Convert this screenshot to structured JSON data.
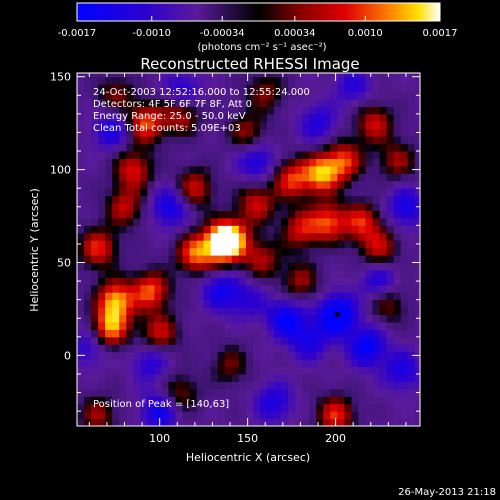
{
  "chart_data": {
    "type": "heatmap",
    "title": "Reconstructed RHESSI Image",
    "xlabel": "Heliocentric X (arcsec)",
    "ylabel": "Heliocentric Y (arcsec)",
    "xlim": [
      53,
      248
    ],
    "ylim": [
      -38,
      152
    ],
    "x_ticks": [
      100,
      150,
      200
    ],
    "y_ticks": [
      0,
      50,
      100,
      150
    ],
    "colorbar": {
      "range": [
        -0.0017,
        0.0017
      ],
      "tick_values": [
        -0.0017,
        -0.001,
        -0.00034,
        0.00034,
        0.001,
        0.0017
      ],
      "tick_labels": [
        "-0.0017",
        "-0.0010",
        "-0.00034",
        "0.00034",
        "0.0010",
        "0.0017"
      ],
      "label": "(photons cm⁻² s⁻¹ asec⁻²)"
    },
    "annotations": [
      "24-Oct-2003 12:52:16.000 to 12:55:24.000",
      "Detectors: 4F 5F 6F 7F 8F, Att 0",
      "Energy Range: 25.0 - 50.0 keV",
      "Clean     Total counts: 5.09E+03"
    ],
    "peak_label": "Position of Peak = [140,63]",
    "marker": {
      "x": 201,
      "y": 22
    },
    "blobs": [
      {
        "x": 140,
        "y": 63,
        "v": 1.0
      },
      {
        "x": 135,
        "y": 60,
        "v": 0.85
      },
      {
        "x": 120,
        "y": 55,
        "v": 0.8
      },
      {
        "x": 75,
        "y": 30,
        "v": 0.95
      },
      {
        "x": 72,
        "y": 15,
        "v": 0.9
      },
      {
        "x": 95,
        "y": 35,
        "v": 0.8
      },
      {
        "x": 100,
        "y": 12,
        "v": 0.6
      },
      {
        "x": 65,
        "y": 58,
        "v": 0.7
      },
      {
        "x": 80,
        "y": 80,
        "v": 0.55
      },
      {
        "x": 85,
        "y": 100,
        "v": 0.65
      },
      {
        "x": 92,
        "y": 125,
        "v": 0.8
      },
      {
        "x": 112,
        "y": 130,
        "v": 0.6
      },
      {
        "x": 120,
        "y": 90,
        "v": 0.6
      },
      {
        "x": 155,
        "y": 82,
        "v": 0.6
      },
      {
        "x": 158,
        "y": 52,
        "v": 0.5
      },
      {
        "x": 150,
        "y": 120,
        "v": 0.45
      },
      {
        "x": 175,
        "y": 95,
        "v": 0.7
      },
      {
        "x": 192,
        "y": 98,
        "v": 0.95
      },
      {
        "x": 205,
        "y": 105,
        "v": 0.7
      },
      {
        "x": 180,
        "y": 68,
        "v": 0.6
      },
      {
        "x": 196,
        "y": 72,
        "v": 0.75
      },
      {
        "x": 215,
        "y": 72,
        "v": 0.65
      },
      {
        "x": 225,
        "y": 58,
        "v": 0.55
      },
      {
        "x": 222,
        "y": 125,
        "v": 0.6
      },
      {
        "x": 235,
        "y": 105,
        "v": 0.45
      },
      {
        "x": 180,
        "y": 40,
        "v": 0.45
      },
      {
        "x": 230,
        "y": 28,
        "v": 0.4
      },
      {
        "x": 200,
        "y": -32,
        "v": 0.7
      },
      {
        "x": 112,
        "y": -20,
        "v": 0.4
      },
      {
        "x": 140,
        "y": -5,
        "v": 0.35
      },
      {
        "x": 65,
        "y": -32,
        "v": 0.45
      },
      {
        "x": 160,
        "y": 142,
        "v": 0.4
      },
      {
        "x": 75,
        "y": 140,
        "v": 0.4
      },
      {
        "x": 106,
        "y": 80,
        "v": -0.6
      },
      {
        "x": 73,
        "y": 122,
        "v": -0.55
      },
      {
        "x": 113,
        "y": 142,
        "v": -0.5
      },
      {
        "x": 155,
        "y": 105,
        "v": -0.55
      },
      {
        "x": 135,
        "y": 35,
        "v": -0.55
      },
      {
        "x": 100,
        "y": -30,
        "v": -0.6
      },
      {
        "x": 95,
        "y": -3,
        "v": -0.45
      },
      {
        "x": 60,
        "y": 5,
        "v": -0.4
      },
      {
        "x": 172,
        "y": 20,
        "v": -0.7
      },
      {
        "x": 185,
        "y": 8,
        "v": -0.5
      },
      {
        "x": 201,
        "y": 22,
        "v": -0.95
      },
      {
        "x": 218,
        "y": 5,
        "v": -0.7
      },
      {
        "x": 238,
        "y": -8,
        "v": -0.5
      },
      {
        "x": 190,
        "y": 125,
        "v": -0.45
      },
      {
        "x": 240,
        "y": 80,
        "v": -0.55
      },
      {
        "x": 225,
        "y": 40,
        "v": -0.5
      },
      {
        "x": 165,
        "y": -25,
        "v": -0.5
      },
      {
        "x": 210,
        "y": 145,
        "v": -0.4
      },
      {
        "x": 150,
        "y": 30,
        "v": -0.35
      }
    ]
  },
  "footer": {
    "timestamp": "26-May-2013 21:18"
  }
}
